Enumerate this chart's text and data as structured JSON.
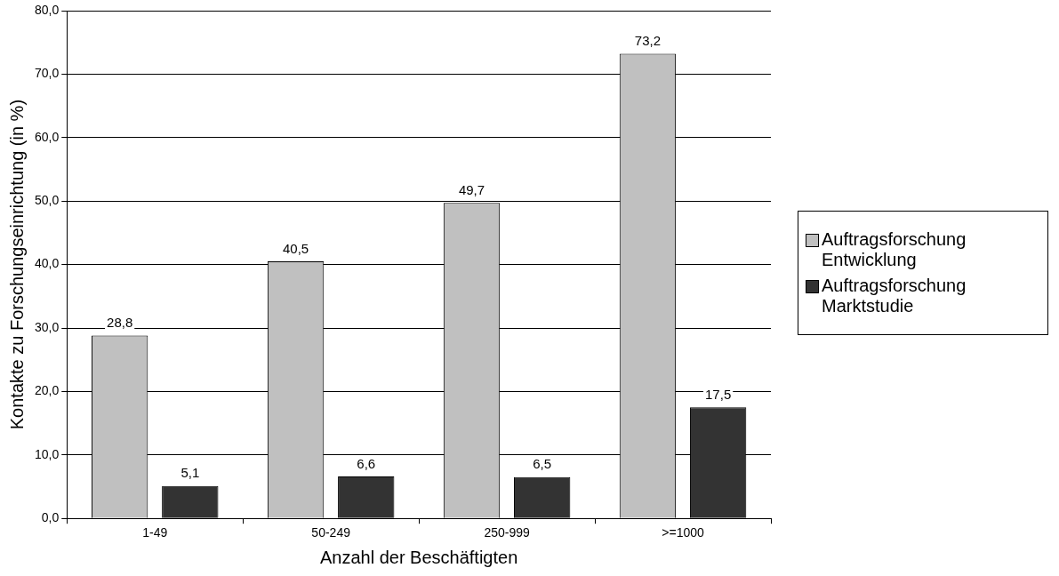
{
  "chart_data": {
    "type": "bar",
    "xlabel": "Anzahl der Beschäftigten",
    "ylabel": "Kontakte zu Forschungseinrichtung (in %)",
    "categories": [
      "1-49",
      "50-249",
      "250-999",
      ">=1000"
    ],
    "series": [
      {
        "name": "Auftragsforschung Entwicklung",
        "color": "#c0c0c0",
        "values": [
          28.8,
          40.5,
          49.7,
          73.2
        ],
        "value_labels": [
          "28,8",
          "40,5",
          "49,7",
          "73,2"
        ]
      },
      {
        "name": "Auftragsforschung Marktstudie",
        "color": "#333333",
        "values": [
          5.1,
          6.6,
          6.5,
          17.5
        ],
        "value_labels": [
          "5,1",
          "6,6",
          "6,5",
          "17,5"
        ]
      }
    ],
    "ylim": [
      0,
      80
    ],
    "yticks": [
      {
        "value": 0,
        "label": "0,0"
      },
      {
        "value": 10,
        "label": "10,0"
      },
      {
        "value": 20,
        "label": "20,0"
      },
      {
        "value": 30,
        "label": "30,0"
      },
      {
        "value": 40,
        "label": "40,0"
      },
      {
        "value": 50,
        "label": "50,0"
      },
      {
        "value": 60,
        "label": "60,0"
      },
      {
        "value": 70,
        "label": "70,0"
      },
      {
        "value": 80,
        "label": "80,0"
      }
    ],
    "grid": "y",
    "legend": "right"
  }
}
